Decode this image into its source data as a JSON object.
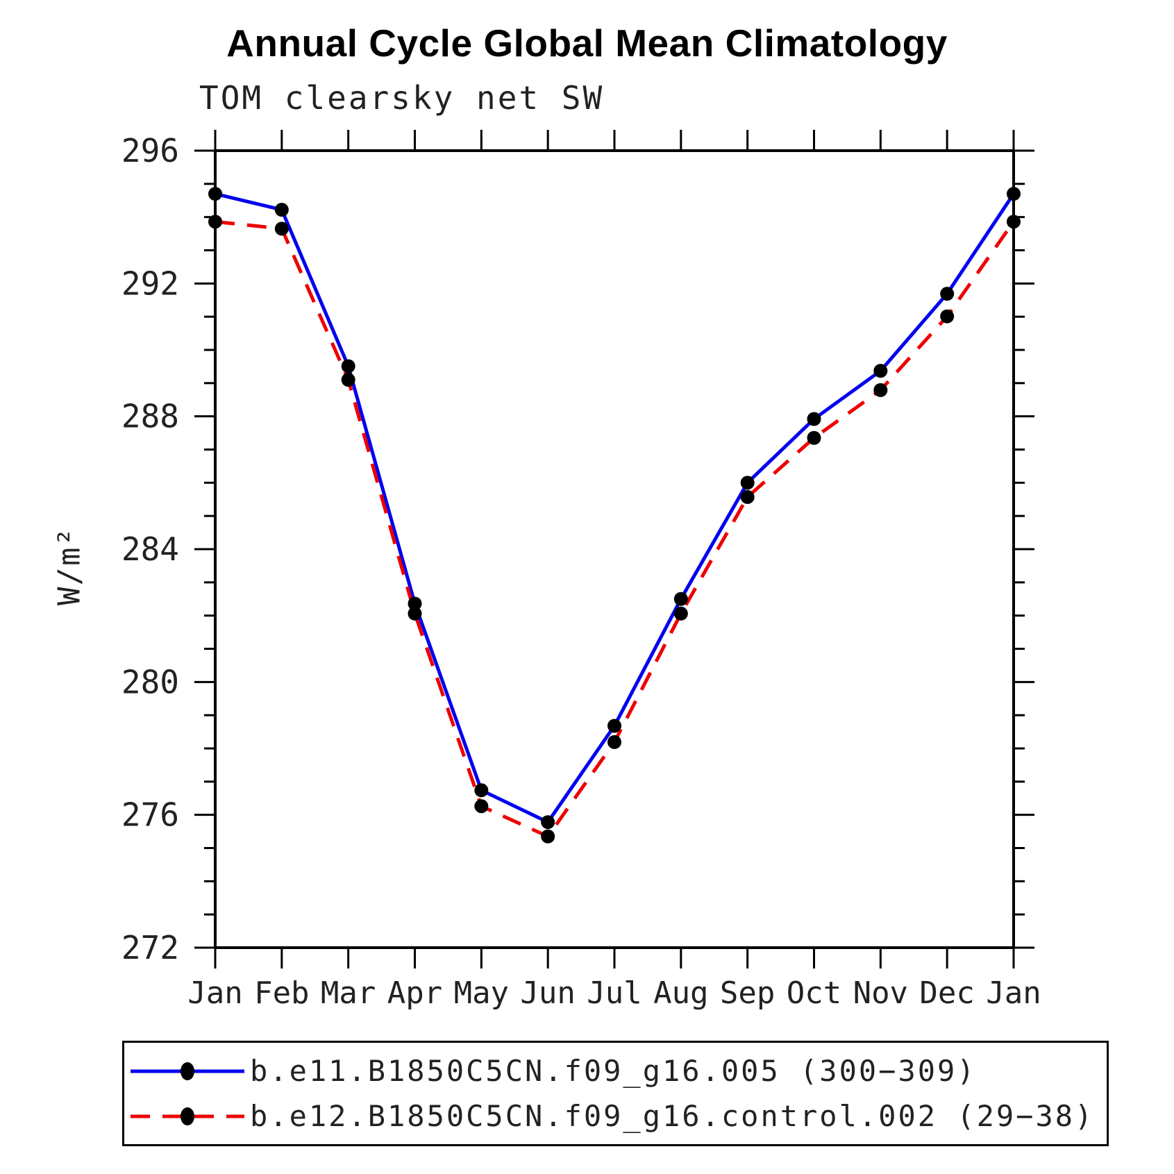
{
  "title": "Annual Cycle Global Mean Climatology",
  "subtitle": "TOM clearsky net SW",
  "ylabel": "W/m²",
  "chart_data": {
    "type": "line",
    "x_categories": [
      "Jan",
      "Feb",
      "Mar",
      "Apr",
      "May",
      "Jun",
      "Jul",
      "Aug",
      "Sep",
      "Oct",
      "Nov",
      "Dec",
      "Jan"
    ],
    "series": [
      {
        "name": "b.e11.B1850C5CN.f09_g16.005 (300−309)",
        "color": "#0000ee",
        "style": "solid",
        "marker_color": "#000000",
        "values": [
          294.7,
          294.22,
          289.51,
          282.36,
          276.74,
          275.78,
          278.68,
          282.5,
          286.0,
          287.92,
          289.37,
          291.69,
          294.7
        ]
      },
      {
        "name": "b.e12.B1850C5CN.f09_g16.control.002 (29−38)",
        "color": "#ee0000",
        "style": "dashed",
        "marker_color": "#000000",
        "values": [
          293.86,
          293.65,
          289.1,
          282.06,
          276.26,
          275.35,
          278.19,
          282.06,
          285.57,
          287.35,
          288.79,
          291.01,
          293.86
        ]
      }
    ],
    "ylim": [
      272,
      296
    ],
    "yticks_major": [
      272,
      276,
      280,
      284,
      288,
      292,
      296
    ],
    "ytick_minor_step": 1,
    "grid": false,
    "legend_position": "bottom",
    "axis_color": "#000000"
  }
}
